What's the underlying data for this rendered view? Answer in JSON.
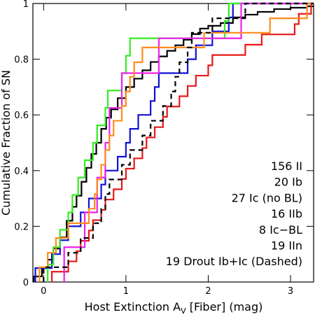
{
  "chart_data": {
    "type": "step",
    "y_label": "Cumulative Fraction of SN",
    "x_label": [
      "Host Extinction A",
      "V",
      " [Fiber] (mag)"
    ],
    "xlim": [
      -0.13,
      3.28
    ],
    "xticks": [
      0,
      1,
      2,
      3
    ],
    "ylim": [
      0,
      1
    ],
    "yticks": [
      0,
      0.2,
      0.4,
      0.6,
      0.8,
      1
    ],
    "legend": "lower right",
    "series": [
      {
        "name": "156 II",
        "color": "#000000",
        "dashed": false,
        "x": [
          -0.12,
          -0.02,
          0.05,
          0.12,
          0.2,
          0.28,
          0.35,
          0.4,
          0.46,
          0.52,
          0.58,
          0.64,
          0.7,
          0.76,
          0.82,
          0.9,
          1.0,
          1.1,
          1.2,
          1.3,
          1.4,
          1.5,
          1.6,
          1.7,
          1.8,
          1.9,
          2.0,
          2.15,
          2.3,
          2.45,
          2.6,
          2.8,
          3.0,
          3.2
        ],
        "values": [
          0.02,
          0.05,
          0.08,
          0.12,
          0.16,
          0.22,
          0.27,
          0.31,
          0.36,
          0.41,
          0.46,
          0.5,
          0.55,
          0.59,
          0.62,
          0.66,
          0.7,
          0.73,
          0.76,
          0.79,
          0.81,
          0.83,
          0.85,
          0.87,
          0.89,
          0.91,
          0.92,
          0.93,
          0.95,
          0.96,
          0.97,
          0.98,
          0.985,
          0.99
        ]
      },
      {
        "name": "20 Ib",
        "color": "#1010d8",
        "dashed": false,
        "x": [
          -0.1,
          0.1,
          0.2,
          0.3,
          0.45,
          0.55,
          0.7,
          0.75,
          0.9,
          1.0,
          1.05,
          1.15,
          1.3,
          1.35,
          1.4,
          1.75,
          1.85,
          2.05,
          2.25,
          2.3
        ],
        "values": [
          0.05,
          0.1,
          0.15,
          0.2,
          0.25,
          0.3,
          0.35,
          0.4,
          0.45,
          0.5,
          0.55,
          0.6,
          0.65,
          0.7,
          0.75,
          0.8,
          0.85,
          0.9,
          0.95,
          1
        ]
      },
      {
        "name": "27 Ic (no BL)",
        "color": "#e81818",
        "dashed": false,
        "x": [
          0.1,
          0.3,
          0.4,
          0.45,
          0.55,
          0.6,
          0.7,
          0.75,
          0.85,
          0.95,
          1.0,
          1.1,
          1.2,
          1.25,
          1.35,
          1.45,
          1.5,
          1.65,
          1.75,
          1.85,
          2.0,
          2.05,
          2.45,
          2.65,
          3.05,
          3.1,
          3.25
        ],
        "values": [
          0.037,
          0.074,
          0.111,
          0.148,
          0.185,
          0.222,
          0.259,
          0.296,
          0.333,
          0.37,
          0.407,
          0.444,
          0.481,
          0.519,
          0.556,
          0.593,
          0.63,
          0.667,
          0.704,
          0.741,
          0.778,
          0.815,
          0.852,
          0.889,
          0.926,
          0.963,
          1
        ]
      },
      {
        "name": "16 IIb",
        "color": "#33ee22",
        "dashed": false,
        "x": [
          0.05,
          0.12,
          0.2,
          0.3,
          0.35,
          0.42,
          0.5,
          0.6,
          0.65,
          0.75,
          0.78,
          0.95,
          1.0,
          1.05,
          2.2,
          2.25
        ],
        "values": [
          0.0625,
          0.125,
          0.1875,
          0.25,
          0.3125,
          0.375,
          0.4375,
          0.5,
          0.5625,
          0.625,
          0.6875,
          0.75,
          0.8125,
          0.875,
          0.9375,
          1
        ]
      },
      {
        "name": "8 Ic−BL",
        "color": "#ee22ee",
        "dashed": false,
        "x": [
          0.25,
          0.5,
          0.65,
          0.75,
          0.8,
          0.95,
          1.4,
          2.4
        ],
        "values": [
          0.125,
          0.25,
          0.375,
          0.5,
          0.625,
          0.75,
          0.875,
          1
        ]
      },
      {
        "name": "19 IIn",
        "color": "#ff8c1a",
        "dashed": false,
        "x": [
          -0.05,
          0.05,
          0.15,
          0.3,
          0.55,
          0.62,
          0.65,
          0.7,
          0.75,
          0.8,
          0.85,
          0.95,
          1.0,
          1.05,
          1.1,
          1.2,
          1.95,
          2.75,
          3.2
        ],
        "values": [
          0.053,
          0.105,
          0.158,
          0.211,
          0.263,
          0.316,
          0.368,
          0.421,
          0.474,
          0.526,
          0.579,
          0.632,
          0.684,
          0.737,
          0.789,
          0.842,
          0.895,
          0.947,
          1
        ]
      },
      {
        "name": "19 Drout Ib+Ic (Dashed)",
        "color": "#000000",
        "dashed": true,
        "x": [
          0.0,
          0.3,
          0.45,
          0.6,
          0.7,
          0.75,
          0.8,
          0.95,
          1.05,
          1.2,
          1.3,
          1.45,
          1.55,
          1.6,
          1.65,
          1.75,
          1.8,
          2.05,
          2.45
        ],
        "values": [
          0.053,
          0.105,
          0.158,
          0.211,
          0.263,
          0.316,
          0.368,
          0.421,
          0.474,
          0.526,
          0.579,
          0.632,
          0.684,
          0.737,
          0.789,
          0.842,
          0.895,
          0.947,
          1
        ]
      }
    ]
  }
}
